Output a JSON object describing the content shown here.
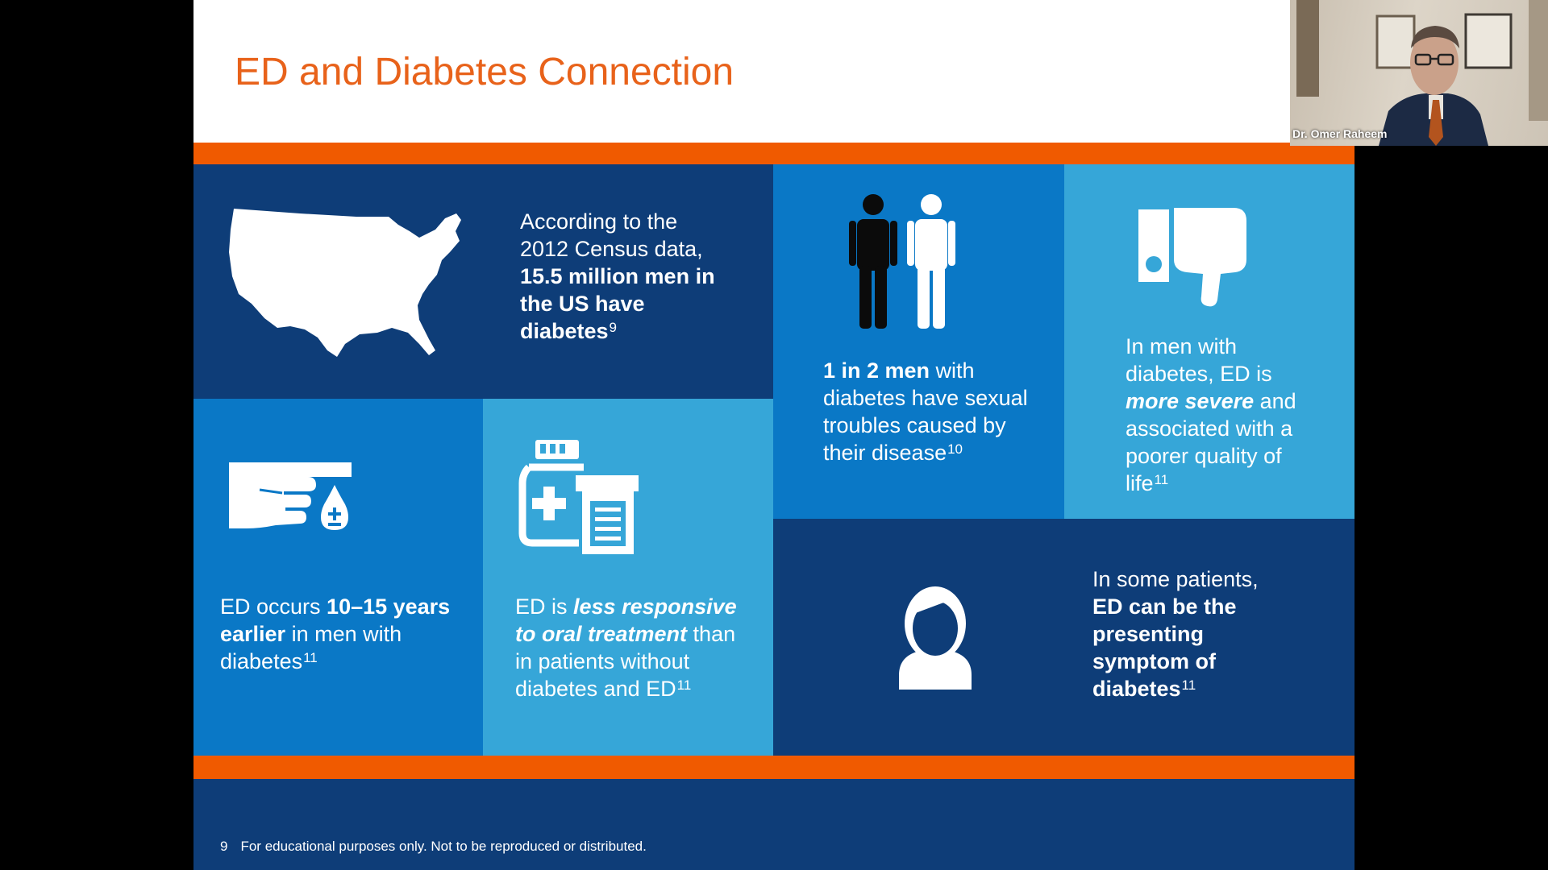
{
  "slide": {
    "title": "ED and Diabetes Connection",
    "footer_number": "9",
    "footer_text": "For educational purposes only. Not to be reproduced or distributed."
  },
  "tiles": {
    "census": {
      "icon": "us-map-icon",
      "t1": "According to the",
      "t2": "2012 Census data,",
      "b1": "15.5 million men in",
      "b2": "the US have",
      "b3": "diabetes",
      "ref": "9"
    },
    "ratio": {
      "icon": "two-men-icon",
      "b1": "1 in 2 men",
      "t1": " with",
      "t2": "diabetes have sexual",
      "t3": "troubles caused by",
      "t4": "their disease",
      "ref": "10"
    },
    "severity": {
      "icon": "thumbs-down-icon",
      "t1": "In men with",
      "t2": "diabetes, ED is",
      "bi1": "more severe",
      "t3": " and",
      "t4": "associated with a",
      "t5": "poorer quality of",
      "t6": "life",
      "ref": "11"
    },
    "earlier": {
      "icon": "finger-blood-drop-icon",
      "t1": "ED occurs ",
      "b1": "10–15 years",
      "b2": "earlier",
      "t2": " in men with",
      "t3": "diabetes",
      "ref": "11"
    },
    "responsive": {
      "icon": "medicine-bottle-icon",
      "t1": "ED is ",
      "bi1": "less responsive",
      "bi2": "to oral treatment",
      "t2": " than",
      "t3": "in patients without",
      "t4": "diabetes and ED",
      "ref": "11"
    },
    "presenting": {
      "icon": "patient-avatar-icon",
      "t1": "In some patients,",
      "b1": "ED can be the",
      "b2": "presenting",
      "b3": "symptom of",
      "b4": "diabetes",
      "ref": "11"
    }
  },
  "webcam": {
    "participant_name": "Dr. Omer Raheem"
  },
  "colors": {
    "orange": "#f05a00",
    "title_orange": "#e8621a",
    "navy": "#0e3d78",
    "mid_blue": "#0a78c6",
    "light_blue": "#36a6d8"
  }
}
